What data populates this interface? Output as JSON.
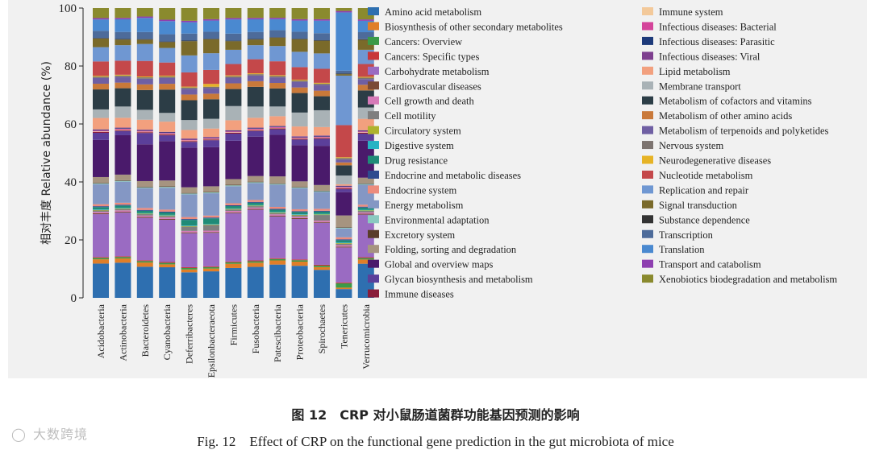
{
  "chart_data": {
    "type": "bar",
    "stacked": true,
    "ylabel": "相对丰度  Relative abundance (%)",
    "ylim": [
      0,
      100
    ],
    "yticks": [
      0,
      20,
      40,
      60,
      80,
      100
    ],
    "categories": [
      "Acidobacteria",
      "Actinobacteria",
      "Bacteroidetes",
      "Cyanobacteria",
      "Deferribacteres",
      "Epsilonbacteraeota",
      "Firmicutes",
      "Fusobacteria",
      "Patescibacteria",
      "Proteobacteria",
      "Spirochaetes",
      "Tenericutes",
      "Verrucomicrobia"
    ],
    "legend_position": "right",
    "series": [
      {
        "name": "Amino acid metabolism",
        "color": "#2e6fb0",
        "values": [
          12,
          12.5,
          11,
          10.5,
          9,
          9.5,
          10.5,
          11,
          12,
          11.5,
          10,
          3,
          12
        ]
      },
      {
        "name": "Biosynthesis of other secondary metabolites",
        "color": "#e07e28",
        "values": [
          1.5,
          1.5,
          1.5,
          1,
          1,
          1,
          1.5,
          1.5,
          1.5,
          1.5,
          1,
          0.5,
          1.5
        ]
      },
      {
        "name": "Cancers: Overview",
        "color": "#3b9a48",
        "values": [
          0.5,
          0.5,
          0.5,
          0.5,
          0.5,
          0.5,
          0.5,
          0.5,
          0.5,
          0.5,
          0.5,
          1.5,
          0.5
        ]
      },
      {
        "name": "Cancers: Specific types",
        "color": "#c8363a",
        "values": [
          0.3,
          0.3,
          0.3,
          0.3,
          0.3,
          0.3,
          0.3,
          0.3,
          0.3,
          0.3,
          0.3,
          0.3,
          0.3
        ]
      },
      {
        "name": "Carbohydrate metabolism",
        "color": "#9a6bc2",
        "values": [
          15,
          15.5,
          15,
          14.5,
          12,
          12,
          17,
          18,
          15,
          14.5,
          15,
          12,
          15
        ]
      },
      {
        "name": "Cardiovascular diseases",
        "color": "#7b4a35",
        "values": [
          0.3,
          0.3,
          0.3,
          0.3,
          0.3,
          0.3,
          0.3,
          0.3,
          0.3,
          0.3,
          0.3,
          0.3,
          0.3
        ]
      },
      {
        "name": "Cell growth and death",
        "color": "#d67ab8",
        "values": [
          0.5,
          0.5,
          0.5,
          0.5,
          0.5,
          0.5,
          0.5,
          0.5,
          0.5,
          0.5,
          0.5,
          0.5,
          0.5
        ]
      },
      {
        "name": "Cell motility",
        "color": "#7f7f7f",
        "values": [
          0.5,
          0.5,
          0.5,
          0.5,
          1.5,
          2,
          0.5,
          0.5,
          0.5,
          0.5,
          2,
          0.5,
          0.5
        ]
      },
      {
        "name": "Circulatory system",
        "color": "#aeb22e",
        "values": [
          0.2,
          0.2,
          0.2,
          0.2,
          0.2,
          0.2,
          0.2,
          0.2,
          0.2,
          0.2,
          0.2,
          0.2,
          0.2
        ]
      },
      {
        "name": "Digestive system",
        "color": "#27b3c4",
        "values": [
          0.2,
          0.2,
          0.2,
          0.2,
          0.2,
          0.2,
          0.2,
          0.2,
          0.2,
          0.2,
          0.2,
          0.2,
          0.2
        ]
      },
      {
        "name": "Drug resistance",
        "color": "#1f8b77",
        "values": [
          0.8,
          0.8,
          0.8,
          0.8,
          2,
          2,
          0.8,
          0.8,
          0.8,
          0.8,
          0.8,
          0.8,
          0.8
        ]
      },
      {
        "name": "Endocrine and metabolic diseases",
        "color": "#2e4b8f",
        "values": [
          0.3,
          0.3,
          0.3,
          0.3,
          0.3,
          0.3,
          0.3,
          0.3,
          0.3,
          0.3,
          0.3,
          0.3,
          0.3
        ]
      },
      {
        "name": "Endocrine system",
        "color": "#ec8b7c",
        "values": [
          0.7,
          0.7,
          0.7,
          0.7,
          0.7,
          0.7,
          0.7,
          0.7,
          0.7,
          0.7,
          0.7,
          0.7,
          0.7
        ]
      },
      {
        "name": "Energy metabolism",
        "color": "#8497c4",
        "values": [
          7,
          7.5,
          7,
          7.5,
          8,
          8,
          6,
          6,
          8,
          7.5,
          6,
          3,
          7
        ]
      },
      {
        "name": "Environmental adaptation",
        "color": "#8ac9c0",
        "values": [
          0.3,
          0.3,
          0.3,
          0.3,
          0.3,
          0.3,
          0.3,
          0.3,
          0.3,
          0.3,
          0.3,
          0.3,
          0.3
        ]
      },
      {
        "name": "Excretory system",
        "color": "#5a3d2a",
        "values": [
          0.2,
          0.2,
          0.2,
          0.2,
          0.2,
          0.2,
          0.2,
          0.2,
          0.2,
          0.2,
          0.2,
          0.2,
          0.2
        ]
      },
      {
        "name": "Folding, sorting and degradation",
        "color": "#a69480",
        "values": [
          2,
          2,
          2,
          2,
          2,
          2,
          2,
          2,
          2.5,
          2,
          2,
          4,
          2
        ]
      },
      {
        "name": "Global and overview maps",
        "color": "#4a1a6b",
        "values": [
          13,
          14,
          13,
          13.5,
          14,
          14,
          13.5,
          14,
          15,
          13,
          14,
          8,
          13
        ]
      },
      {
        "name": "Glycan biosynthesis and metabolism",
        "color": "#5b3f9a",
        "values": [
          2.5,
          1.5,
          4,
          2,
          2,
          2.5,
          2.5,
          2,
          2,
          2,
          2.5,
          1,
          2.5
        ]
      },
      {
        "name": "Immune diseases",
        "color": "#8a1c3a",
        "values": [
          0.3,
          0.3,
          0.3,
          0.3,
          0.3,
          0.3,
          0.3,
          0.3,
          0.3,
          0.3,
          0.3,
          0.3,
          0.3
        ]
      },
      {
        "name": "Immune system",
        "color": "#f3c99a",
        "values": [
          0.2,
          0.2,
          0.2,
          0.2,
          0.2,
          0.2,
          0.2,
          0.2,
          0.2,
          0.2,
          0.2,
          0.2,
          0.2
        ]
      },
      {
        "name": "Infectious diseases: Bacterial",
        "color": "#d4449a",
        "values": [
          0.3,
          0.3,
          0.3,
          0.3,
          0.3,
          0.3,
          0.3,
          0.3,
          0.3,
          0.3,
          0.3,
          0.3,
          0.3
        ]
      },
      {
        "name": "Infectious diseases: Parasitic",
        "color": "#1d3a7a",
        "values": [
          0.2,
          0.2,
          0.2,
          0.2,
          0.2,
          0.2,
          0.2,
          0.2,
          0.2,
          0.2,
          0.2,
          0.2,
          0.2
        ]
      },
      {
        "name": "Infectious diseases: Viral",
        "color": "#7e3f8f",
        "values": [
          0.2,
          0.2,
          0.2,
          0.2,
          0.2,
          0.2,
          0.2,
          0.2,
          0.2,
          0.2,
          0.2,
          0.2,
          0.2
        ]
      },
      {
        "name": "Lipid metabolism",
        "color": "#f2a07e",
        "values": [
          4,
          3.5,
          3.5,
          3.5,
          3,
          3,
          3.5,
          3.5,
          3.5,
          3.5,
          3,
          0.5,
          4
        ]
      },
      {
        "name": "Membrane transport",
        "color": "#a9b2b6",
        "values": [
          3,
          4,
          3.5,
          3,
          3.5,
          3.5,
          5,
          4,
          3.5,
          5,
          6,
          3,
          4
        ]
      },
      {
        "name": "Metabolism of cofactors and vitamins",
        "color": "#2c3d46",
        "values": [
          7,
          6.5,
          7,
          8,
          7,
          7,
          6,
          7,
          6.5,
          7,
          5,
          3.5,
          6
        ]
      },
      {
        "name": "Metabolism of other amino acids",
        "color": "#c9793a",
        "values": [
          2,
          2,
          2,
          2,
          2,
          2,
          2,
          2,
          2,
          2,
          2,
          1,
          2
        ]
      },
      {
        "name": "Metabolism of terpenoids and polyketides",
        "color": "#6f5fa3",
        "values": [
          2,
          2,
          2,
          2,
          2,
          2,
          2,
          2,
          2,
          2,
          2,
          1,
          2
        ]
      },
      {
        "name": "Nervous system",
        "color": "#7d7470",
        "values": [
          0.5,
          0.5,
          0.5,
          0.5,
          0.5,
          0.5,
          0.5,
          0.5,
          0.5,
          0.5,
          0.5,
          0.5,
          0.5
        ]
      },
      {
        "name": "Neurodegenerative diseases",
        "color": "#e6b325",
        "values": [
          0.3,
          0.3,
          0.3,
          0.3,
          0.3,
          1,
          0.3,
          0.3,
          0.3,
          0.3,
          0.3,
          0.3,
          0.3
        ]
      },
      {
        "name": "Nucleotide metabolism",
        "color": "#c4484a",
        "values": [
          5,
          5,
          5.5,
          4.5,
          5,
          5,
          4,
          5,
          5,
          4.5,
          5,
          11,
          4.5
        ]
      },
      {
        "name": "Replication and repair",
        "color": "#6f97d2",
        "values": [
          5,
          5.5,
          6,
          5,
          6,
          6,
          5,
          5,
          5.5,
          5.5,
          5.5,
          17,
          5
        ]
      },
      {
        "name": "Signal transduction",
        "color": "#7a6a2a",
        "values": [
          3,
          2,
          1.5,
          2,
          5,
          5,
          3,
          2,
          3,
          4.5,
          4.5,
          0.5,
          3.5
        ]
      },
      {
        "name": "Substance dependence",
        "color": "#333333",
        "values": [
          0.2,
          0.2,
          0.2,
          0.2,
          0.2,
          0.2,
          0.2,
          0.2,
          0.2,
          0.2,
          0.2,
          0.2,
          0.2
        ]
      },
      {
        "name": "Transcription",
        "color": "#4d6b9a",
        "values": [
          2.5,
          2.5,
          2.5,
          2.5,
          2.5,
          2.5,
          2.5,
          2.5,
          2.5,
          2.5,
          2.5,
          1,
          2.5
        ]
      },
      {
        "name": "Translation",
        "color": "#4a89d0",
        "values": [
          4,
          4.5,
          5,
          4.5,
          4,
          4,
          5,
          4.5,
          4,
          4,
          4.5,
          20,
          4
        ]
      },
      {
        "name": "Transport and catabolism",
        "color": "#8e3fb0",
        "values": [
          0.5,
          0.5,
          0.5,
          0.5,
          0.5,
          0.5,
          0.5,
          0.5,
          0.5,
          0.5,
          0.5,
          0.5,
          0.5
        ]
      },
      {
        "name": "Xenobiotics biodegradation and metabolism",
        "color": "#8a8a2e",
        "values": [
          3.5,
          3.5,
          3,
          4,
          4.5,
          4,
          3.5,
          3.5,
          3.5,
          4,
          4,
          1,
          4
        ]
      }
    ]
  },
  "caption": {
    "cn": "图 12　CRP 对小鼠肠道菌群功能基因预测的影响",
    "en": "Fig. 12　Effect of CRP on the functional gene prediction in the gut microbiota of mice"
  },
  "watermark": {
    "text": "大数跨境",
    "logo_icon": "speech-bubble-logo-icon"
  }
}
